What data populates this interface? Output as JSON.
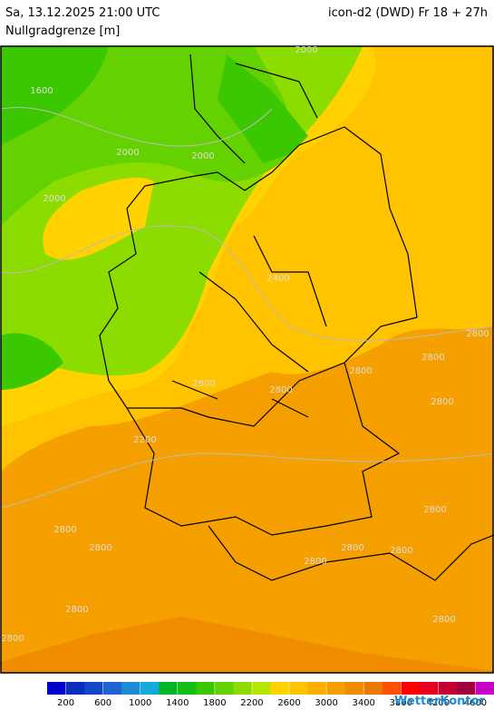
{
  "header": {
    "datetime": "Sa, 13.12.2025 21:00 UTC",
    "parameter": "Nullgradgrenze [m]",
    "model": "icon-d2 (DWD) Fr 18 + 27h"
  },
  "contour_labels": [
    "1600",
    "2000",
    "2000",
    "2000",
    "2000",
    "2400",
    "2800",
    "2800",
    "2800",
    "2800",
    "2800",
    "2200",
    "2800",
    "2800",
    "2800",
    "2800",
    "2800",
    "2800",
    "2800",
    "2800",
    "2800",
    "2800"
  ],
  "colorbar": {
    "labels": [
      200,
      600,
      1000,
      1400,
      1800,
      2200,
      2600,
      3000,
      3400,
      3800,
      4200,
      4600
    ],
    "range": [
      0,
      4800
    ],
    "colors": [
      "#0000c8",
      "#0a2fbe",
      "#1446c8",
      "#1e64d2",
      "#1e8cd2",
      "#14aadc",
      "#00b428",
      "#14be14",
      "#3cc800",
      "#64d200",
      "#8cdc00",
      "#b4e600",
      "#ffd200",
      "#ffc300",
      "#ffaf00",
      "#f5a000",
      "#f08c00",
      "#eb7800",
      "#ff5000",
      "#ff0000",
      "#e6001e",
      "#c80032",
      "#a0003c",
      "#c800c8"
    ]
  },
  "logo": "WetterKontor"
}
